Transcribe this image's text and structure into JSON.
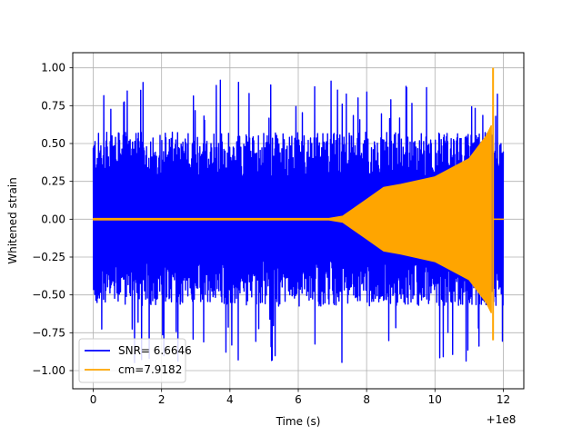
{
  "chart_data": {
    "type": "line",
    "title": "",
    "xlabel": "Time (s)",
    "ylabel": "Whitened strain",
    "x_offset_label": "+1e8",
    "xlim": [
      -0.6,
      12.6
    ],
    "ylim": [
      -1.12,
      1.1
    ],
    "xticks": [
      0,
      2,
      4,
      6,
      8,
      10,
      12
    ],
    "xtick_labels": [
      "0",
      "2",
      "4",
      "6",
      "8",
      "10",
      "12"
    ],
    "yticks": [
      -1.0,
      -0.75,
      -0.5,
      -0.25,
      0.0,
      0.25,
      0.5,
      0.75,
      1.0
    ],
    "ytick_labels": [
      "−1.00",
      "−0.75",
      "−0.50",
      "−0.25",
      "0.00",
      "0.25",
      "0.50",
      "0.75",
      "1.00"
    ],
    "grid": true,
    "legend_position": "lower-left",
    "series": [
      {
        "name": "SNR= 6.6646",
        "color": "#0000ff",
        "kind": "noise",
        "x_range": [
          0,
          12
        ],
        "typical_amplitude": 0.5,
        "min": -1.0,
        "max": 1.0
      },
      {
        "name": "cm=7.9182",
        "color": "#ffa500",
        "kind": "chirp",
        "envelope_x": [
          0,
          6.9,
          7.3,
          8.0,
          8.5,
          9.0,
          10.0,
          11.0,
          11.5,
          11.65
        ],
        "envelope_y": [
          0.005,
          0.005,
          0.02,
          0.13,
          0.21,
          0.23,
          0.28,
          0.4,
          0.55,
          0.62
        ],
        "peak_x": 11.7,
        "peak_max": 1.0,
        "peak_min": -0.8,
        "end_x": 11.72
      }
    ]
  }
}
